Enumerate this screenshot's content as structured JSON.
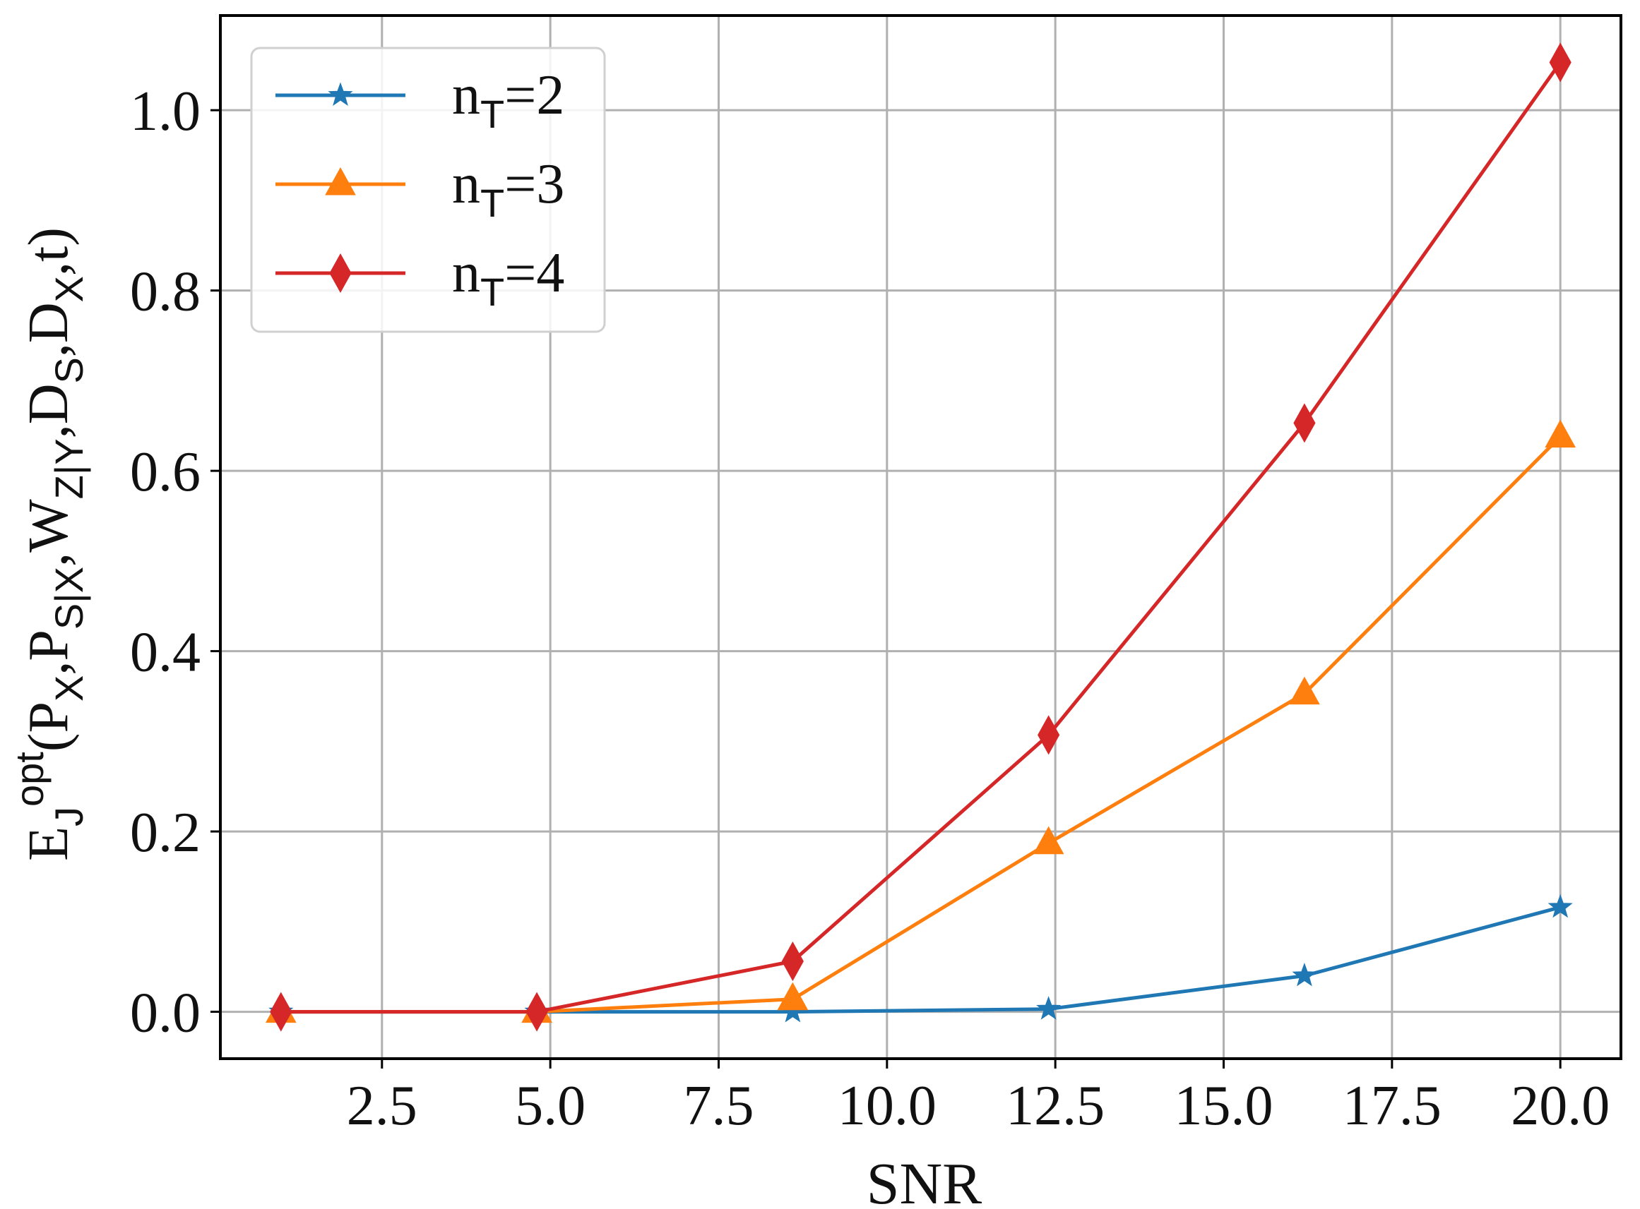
{
  "chart_data": {
    "type": "line",
    "xlabel": "SNR",
    "ylabel": {
      "parts": [
        {
          "t": "E",
          "s": "base"
        },
        {
          "t": "J",
          "s": "sub"
        },
        {
          "t": "opt",
          "s": "sup"
        },
        {
          "t": "(P",
          "s": "base"
        },
        {
          "t": "X",
          "s": "sub"
        },
        {
          "t": ",P",
          "s": "base"
        },
        {
          "t": "S|X",
          "s": "sub"
        },
        {
          "t": ",W",
          "s": "base"
        },
        {
          "t": "Z|Y",
          "s": "sub"
        },
        {
          "t": ",D",
          "s": "base"
        },
        {
          "t": "S",
          "s": "sub"
        },
        {
          "t": ",D",
          "s": "base"
        },
        {
          "t": "X",
          "s": "sub"
        },
        {
          "t": ",t)",
          "s": "base"
        }
      ]
    },
    "xlim": [
      0.1,
      20.9
    ],
    "ylim": [
      -0.052,
      1.105
    ],
    "xticks": [
      2.5,
      5.0,
      7.5,
      10.0,
      12.5,
      15.0,
      17.5,
      20.0
    ],
    "xtick_labels": [
      "2.5",
      "5.0",
      "7.5",
      "10.0",
      "12.5",
      "15.0",
      "17.5",
      "20.0"
    ],
    "yticks": [
      0.0,
      0.2,
      0.4,
      0.6,
      0.8,
      1.0
    ],
    "ytick_labels": [
      "0.0",
      "0.2",
      "0.4",
      "0.6",
      "0.8",
      "1.0"
    ],
    "grid": true,
    "legend_position": "upper-left",
    "x": [
      1.0,
      4.8,
      8.6,
      12.4,
      16.2,
      20.0
    ],
    "series": [
      {
        "name": "nT=2",
        "legend_main": "n",
        "legend_sub": "T",
        "legend_rest": "=2",
        "color": "#1f77b4",
        "marker": "star",
        "values": [
          0.0,
          0.0,
          0.0,
          0.003,
          0.04,
          0.116
        ]
      },
      {
        "name": "nT=3",
        "legend_main": "n",
        "legend_sub": "T",
        "legend_rest": "=3",
        "color": "#ff7f0e",
        "marker": "triangle",
        "values": [
          0.0,
          0.0,
          0.014,
          0.187,
          0.353,
          0.638
        ]
      },
      {
        "name": "nT=4",
        "legend_main": "n",
        "legend_sub": "T",
        "legend_rest": "=4",
        "color": "#d62728",
        "marker": "diamond",
        "values": [
          0.0,
          0.0,
          0.056,
          0.307,
          0.653,
          1.053
        ]
      }
    ]
  }
}
